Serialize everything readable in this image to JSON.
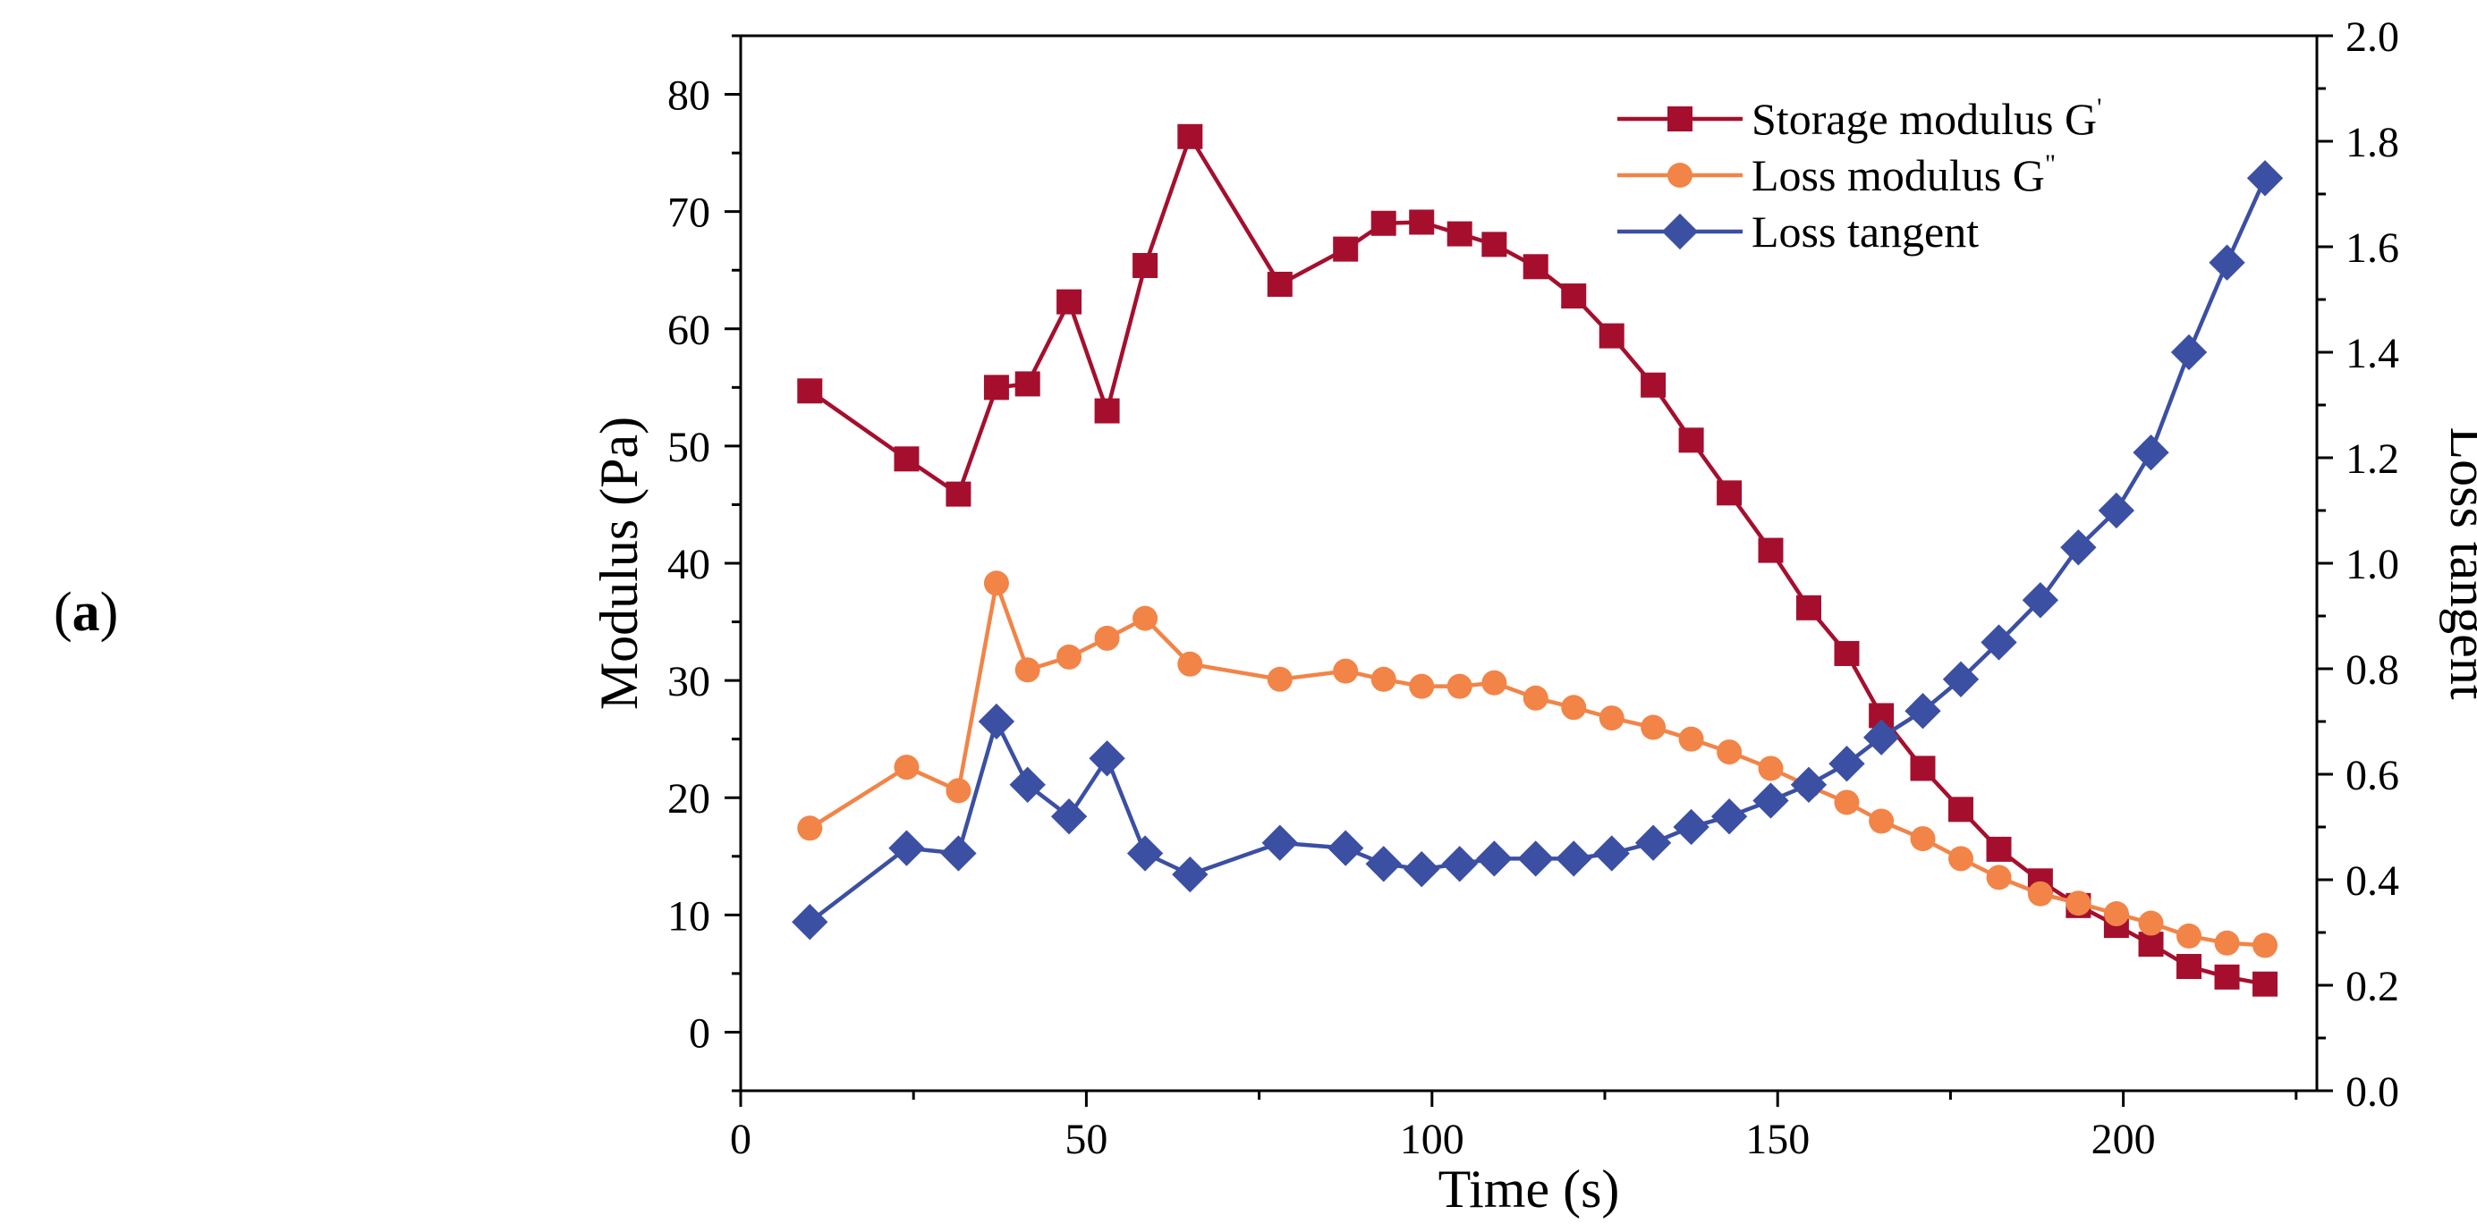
{
  "panel_label": {
    "open": "(",
    "letter": "a",
    "close": ")"
  },
  "chart_data": {
    "type": "line",
    "xlabel": "Time (s)",
    "ylabel_left": "Modulus (Pa)",
    "ylabel_right": "Loss tangent",
    "xlim": [
      0,
      228
    ],
    "ylim_left": [
      -5,
      85
    ],
    "ylim_right": [
      0,
      2.0
    ],
    "x_ticks": [
      "0",
      "50",
      "100",
      "150",
      "200"
    ],
    "y_left_ticks": [
      "0",
      "10",
      "20",
      "30",
      "40",
      "50",
      "60",
      "70",
      "80"
    ],
    "y_right_ticks": [
      "0.0",
      "0.2",
      "0.4",
      "0.6",
      "0.8",
      "1.0",
      "1.2",
      "1.4",
      "1.6",
      "1.8",
      "2.0"
    ],
    "legend_position": "top-right",
    "series": [
      {
        "name": "Storage modulus G'",
        "label_main": "Storage modulus G",
        "label_sup": "'",
        "color": "#a50f2d",
        "marker": "square",
        "axis": "left",
        "x": [
          10,
          24,
          31.5,
          37,
          41.5,
          47.5,
          53,
          58.5,
          65,
          78,
          87.5,
          93,
          98.5,
          104,
          109,
          115,
          120.5,
          126,
          132,
          137.5,
          143,
          149,
          154.5,
          160,
          165,
          171,
          176.5,
          182,
          188,
          193.5,
          199,
          204,
          209.5,
          215,
          220.5
        ],
        "values": [
          54.7,
          48.9,
          45.9,
          55.0,
          55.3,
          62.3,
          53.0,
          65.4,
          76.4,
          63.8,
          66.8,
          69.0,
          69.1,
          68.1,
          67.2,
          65.3,
          62.8,
          59.4,
          55.2,
          50.5,
          46.0,
          41.1,
          36.2,
          32.3,
          27.0,
          22.5,
          19.0,
          15.6,
          12.9,
          10.8,
          9.1,
          7.5,
          5.6,
          4.7,
          4.1
        ]
      },
      {
        "name": "Loss modulus G\"",
        "label_main": "Loss modulus G",
        "label_sup": "\"",
        "color": "#f28447",
        "marker": "circle",
        "axis": "left",
        "x": [
          10,
          24,
          31.5,
          37,
          41.5,
          47.5,
          53,
          58.5,
          65,
          78,
          87.5,
          93,
          98.5,
          104,
          109,
          115,
          120.5,
          126,
          132,
          137.5,
          143,
          149,
          154.5,
          160,
          165,
          171,
          176.5,
          182,
          188,
          193.5,
          199,
          204,
          209.5,
          215,
          220.5
        ],
        "values": [
          17.4,
          22.6,
          20.6,
          38.3,
          30.9,
          32.0,
          33.6,
          35.3,
          31.4,
          30.1,
          30.8,
          30.1,
          29.5,
          29.5,
          29.8,
          28.5,
          27.7,
          26.8,
          26.0,
          25.0,
          23.9,
          22.5,
          21.0,
          19.6,
          18.0,
          16.5,
          14.8,
          13.2,
          11.8,
          11.0,
          10.1,
          9.3,
          8.2,
          7.6,
          7.4
        ]
      },
      {
        "name": "Loss tangent",
        "label_main": "Loss tangent",
        "label_sup": "",
        "color": "#3b4fa3",
        "marker": "diamond",
        "axis": "right",
        "x": [
          10,
          24,
          31.5,
          37,
          41.5,
          47.5,
          53,
          58.5,
          65,
          78,
          87.5,
          93,
          98.5,
          104,
          109,
          115,
          120.5,
          126,
          132,
          137.5,
          143,
          149,
          154.5,
          160,
          165,
          171,
          176.5,
          182,
          188,
          193.5,
          199,
          204,
          209.5,
          215,
          220.5
        ],
        "values": [
          0.32,
          0.46,
          0.45,
          0.7,
          0.58,
          0.52,
          0.63,
          0.45,
          0.41,
          0.47,
          0.46,
          0.43,
          0.42,
          0.43,
          0.44,
          0.44,
          0.44,
          0.45,
          0.47,
          0.5,
          0.52,
          0.55,
          0.58,
          0.62,
          0.67,
          0.72,
          0.78,
          0.85,
          0.93,
          1.03,
          1.1,
          1.21,
          1.4,
          1.57,
          1.73
        ]
      }
    ]
  }
}
